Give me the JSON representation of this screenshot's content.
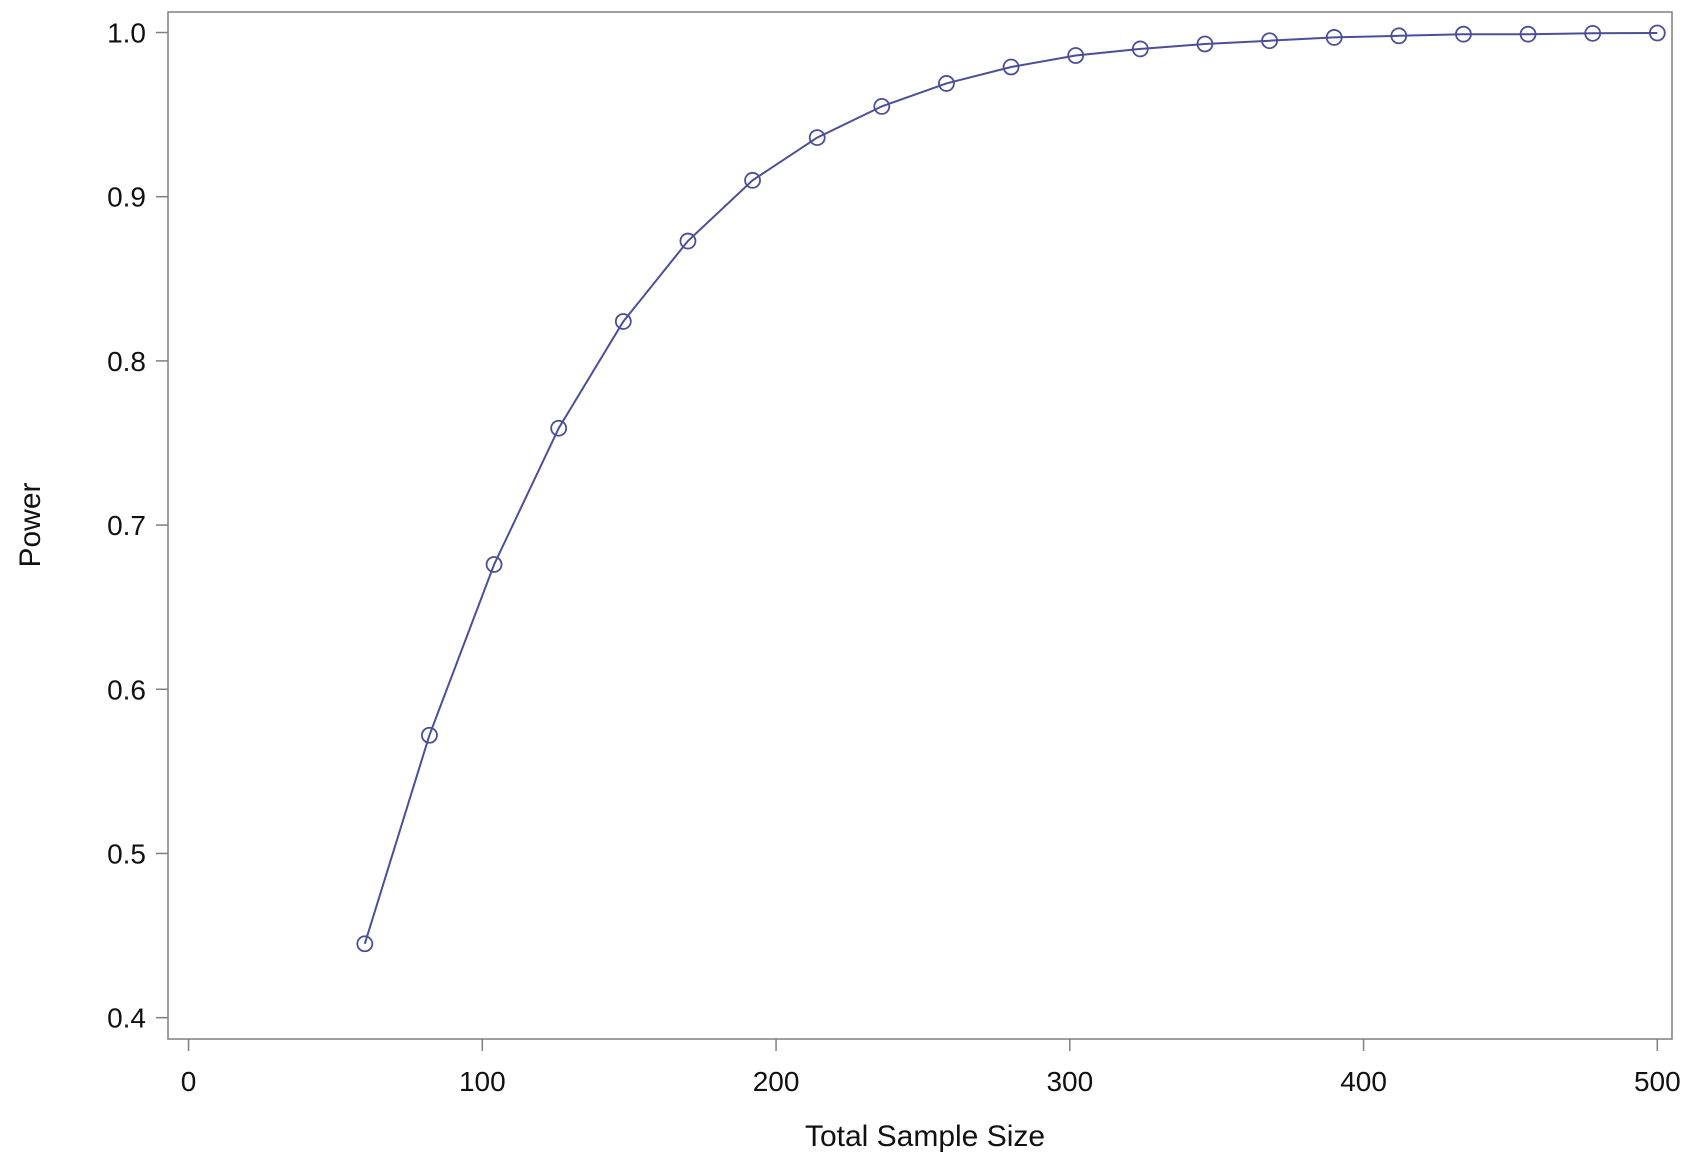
{
  "chart_data": {
    "type": "line",
    "title": "",
    "xlabel": "Total Sample Size",
    "ylabel": "Power",
    "xlim": [
      -7,
      505
    ],
    "ylim": [
      0.387,
      1.0125
    ],
    "xticks": [
      0,
      100,
      200,
      300,
      400,
      500
    ],
    "xtick_labels": [
      "0",
      "100",
      "200",
      "300",
      "400",
      "500"
    ],
    "yticks": [
      0.4,
      0.5,
      0.6,
      0.7,
      0.8,
      0.9,
      1.0
    ],
    "ytick_labels": [
      "0.4",
      "0.5",
      "0.6",
      "0.7",
      "0.8",
      "0.9",
      "1.0"
    ],
    "grid": false,
    "legend": "none",
    "marker": "circle",
    "series": [
      {
        "color": "#4a4f97",
        "x": [
          60,
          82,
          104,
          126,
          148,
          170,
          192,
          214,
          236,
          258,
          280,
          302,
          324,
          346,
          368,
          390,
          412,
          434,
          456,
          478,
          500
        ],
        "y": [
          0.445,
          0.572,
          0.676,
          0.759,
          0.824,
          0.873,
          0.91,
          0.936,
          0.955,
          0.969,
          0.979,
          0.986,
          0.99,
          0.993,
          0.995,
          0.997,
          0.998,
          0.999,
          0.999,
          0.9995,
          0.9997
        ]
      }
    ]
  }
}
